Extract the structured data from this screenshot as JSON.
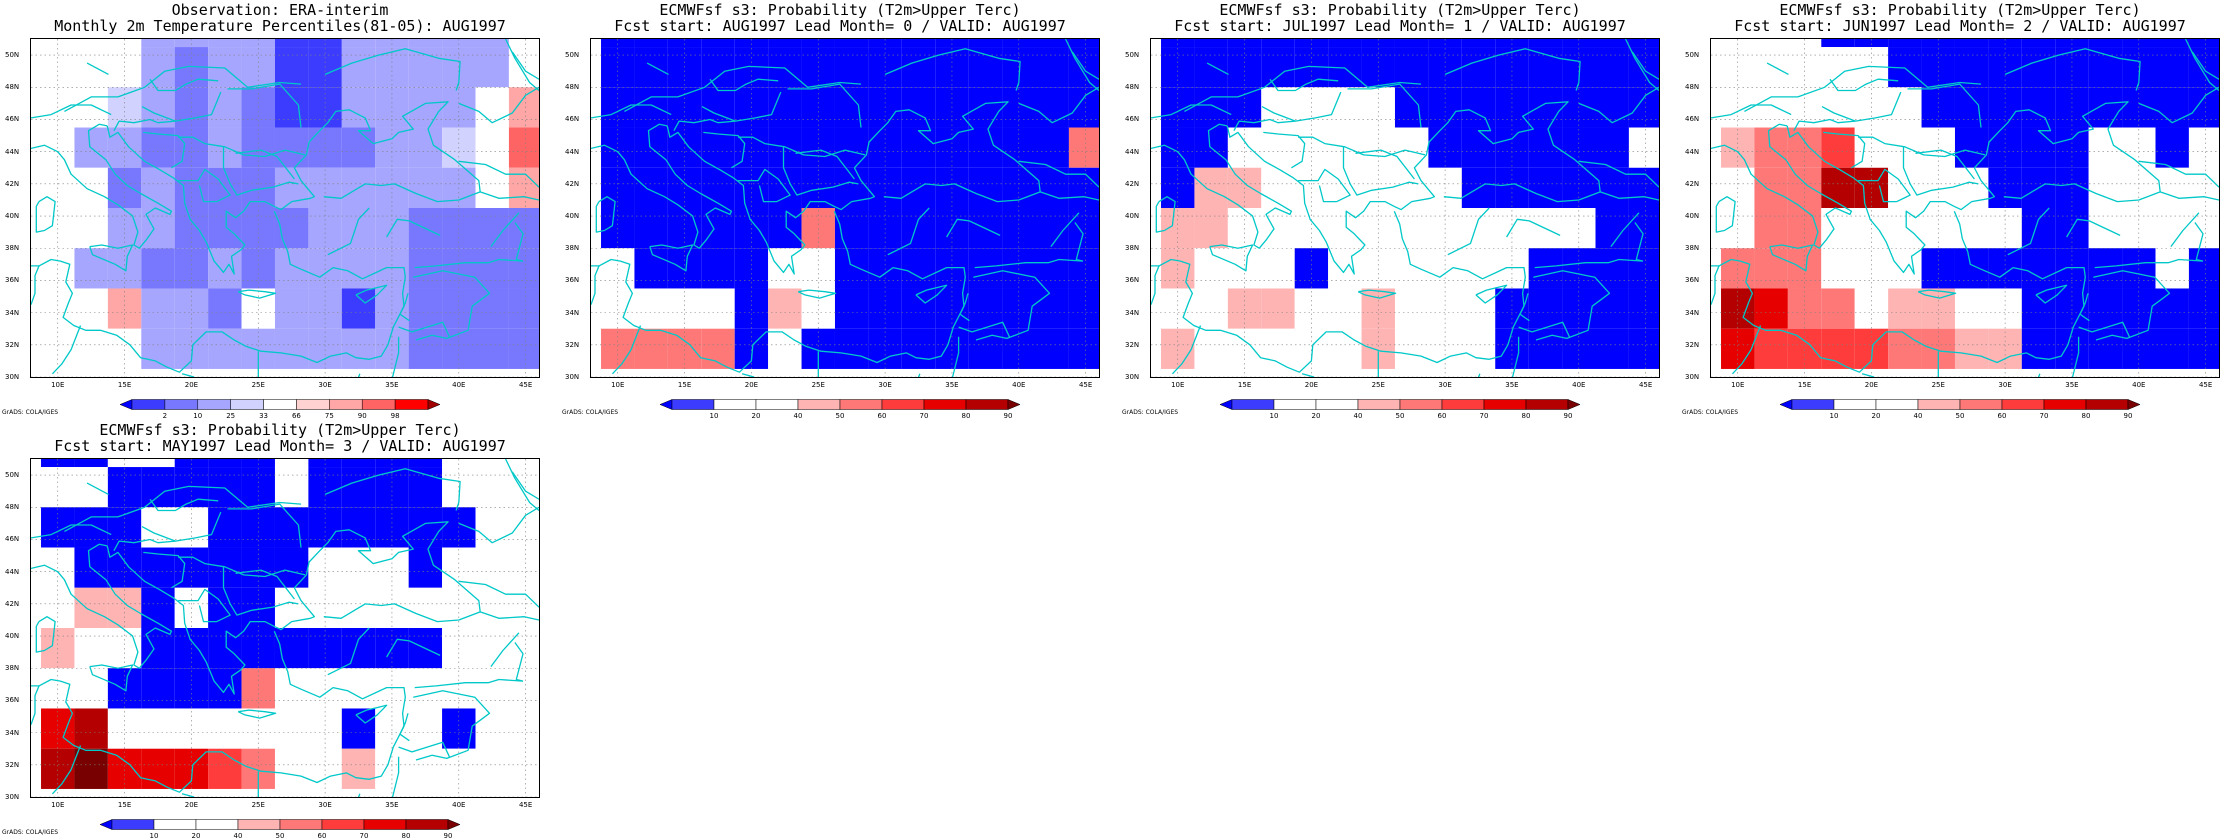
{
  "palette_obs": [
    "#0000ff",
    "#3c3cff",
    "#7878ff",
    "#a6a6ff",
    "#d2d2ff",
    "#ffffff",
    "#ffd2d2",
    "#ffa6a6",
    "#ff6464",
    "#ff0000",
    "#a00000"
  ],
  "palette_prob": [
    "#0000ff",
    "#3c3cff",
    "#ffffff",
    "#ffffff",
    "#ffb4b4",
    "#ff7878",
    "#ff3c3c",
    "#e60000",
    "#b40000",
    "#780000"
  ],
  "coast_color": "#00c8c8",
  "lat_labels": [
    "50N",
    "48N",
    "46N",
    "44N",
    "42N",
    "40N",
    "38N",
    "36N",
    "34N",
    "32N",
    "30N"
  ],
  "lon_labels": [
    "10E",
    "15E",
    "20E",
    "25E",
    "30E",
    "35E",
    "40E",
    "45E"
  ],
  "credit": "GrADS: COLA/IGES",
  "panels": [
    {
      "title1": "Observation: ERA-interim",
      "title2": "Monthly 2m Temperature Percentiles(81-05): AUG1997",
      "palette": "obs",
      "colorbar_labels": [
        "2",
        "10",
        "25",
        "33",
        "66",
        "75",
        "90",
        "98"
      ],
      "grid": [
        [
          8,
          8,
          7,
          7,
          5,
          5,
          5,
          5,
          5,
          5,
          3,
          4,
          5,
          5,
          5
        ],
        [
          8,
          8,
          7,
          6,
          5,
          5,
          4,
          5,
          5,
          5,
          4,
          4,
          5,
          5,
          5
        ],
        [
          7,
          6,
          5,
          5,
          3,
          3,
          3,
          3,
          3,
          3,
          3,
          3,
          3,
          4,
          5
        ],
        [
          5,
          5,
          5,
          3,
          3,
          3,
          3,
          1,
          1,
          3,
          3,
          3,
          3,
          3,
          5
        ],
        [
          5,
          5,
          5,
          3,
          2,
          3,
          3,
          1,
          1,
          3,
          3,
          3,
          3,
          3,
          5
        ],
        [
          5,
          5,
          4,
          3,
          2,
          3,
          2,
          1,
          1,
          3,
          3,
          3,
          3,
          5,
          7
        ],
        [
          5,
          3,
          3,
          2,
          2,
          3,
          2,
          2,
          2,
          2,
          3,
          3,
          4,
          5,
          8
        ],
        [
          5,
          5,
          2,
          3,
          2,
          2,
          2,
          3,
          3,
          3,
          3,
          3,
          3,
          5,
          7
        ],
        [
          5,
          5,
          3,
          3,
          2,
          2,
          2,
          2,
          3,
          3,
          3,
          2,
          2,
          2,
          2
        ],
        [
          5,
          3,
          3,
          2,
          2,
          3,
          2,
          3,
          3,
          3,
          3,
          2,
          2,
          2,
          2
        ],
        [
          5,
          5,
          7,
          3,
          3,
          2,
          5,
          3,
          3,
          1,
          3,
          2,
          2,
          2,
          2
        ],
        [
          5,
          5,
          5,
          3,
          3,
          3,
          3,
          3,
          3,
          3,
          3,
          2,
          2,
          2,
          2
        ]
      ]
    },
    {
      "title1": "ECMWFsf s3: Probability (T2m>Upper Terc)",
      "title2": "Fcst start: AUG1997  Lead Month= 0 / VALID: AUG1997",
      "palette": "prob",
      "colorbar_labels": [
        "10",
        "20",
        "40",
        "50",
        "60",
        "70",
        "80",
        "90"
      ],
      "grid": [
        [
          1,
          0,
          0,
          0,
          0,
          0,
          0,
          0,
          0,
          0,
          0,
          0,
          0,
          0,
          0
        ],
        [
          0,
          0,
          0,
          0,
          0,
          0,
          2,
          0,
          0,
          0,
          0,
          0,
          0,
          0,
          0
        ],
        [
          0,
          0,
          0,
          0,
          0,
          0,
          0,
          0,
          0,
          0,
          0,
          0,
          0,
          0,
          0
        ],
        [
          0,
          0,
          0,
          0,
          0,
          0,
          0,
          0,
          0,
          0,
          0,
          0,
          0,
          0,
          0
        ],
        [
          0,
          0,
          0,
          0,
          0,
          0,
          0,
          0,
          0,
          0,
          0,
          0,
          0,
          0,
          0
        ],
        [
          0,
          0,
          0,
          0,
          0,
          0,
          0,
          0,
          0,
          0,
          0,
          0,
          0,
          0,
          0
        ],
        [
          0,
          0,
          0,
          0,
          0,
          0,
          0,
          0,
          0,
          0,
          0,
          0,
          0,
          0,
          5
        ],
        [
          0,
          0,
          0,
          0,
          0,
          0,
          0,
          0,
          0,
          0,
          0,
          0,
          0,
          0,
          0
        ],
        [
          0,
          0,
          0,
          0,
          0,
          0,
          5,
          0,
          0,
          0,
          0,
          0,
          0,
          0,
          0
        ],
        [
          2,
          0,
          0,
          0,
          0,
          2,
          2,
          0,
          0,
          0,
          0,
          0,
          0,
          0,
          0
        ],
        [
          2,
          2,
          2,
          2,
          0,
          4,
          2,
          0,
          0,
          0,
          0,
          0,
          0,
          0,
          0
        ],
        [
          5,
          5,
          5,
          5,
          0,
          2,
          0,
          0,
          0,
          0,
          0,
          0,
          0,
          0,
          0
        ]
      ]
    },
    {
      "title1": "ECMWFsf s3: Probability (T2m>Upper Terc)",
      "title2": "Fcst start: JUL1997  Lead Month= 1 / VALID: AUG1997",
      "palette": "prob",
      "colorbar_labels": [
        "10",
        "20",
        "40",
        "50",
        "60",
        "70",
        "80",
        "90"
      ],
      "grid": [
        [
          0,
          0,
          0,
          0,
          0,
          0,
          0,
          0,
          0,
          0,
          0,
          0,
          0,
          0,
          0
        ],
        [
          0,
          0,
          0,
          0,
          0,
          0,
          0,
          0,
          0,
          0,
          0,
          0,
          0,
          0,
          0
        ],
        [
          0,
          0,
          0,
          0,
          0,
          0,
          0,
          0,
          0,
          0,
          0,
          0,
          0,
          0,
          0
        ],
        [
          0,
          0,
          0,
          0,
          0,
          0,
          0,
          0,
          0,
          0,
          0,
          0,
          0,
          0,
          0
        ],
        [
          0,
          0,
          0,
          0,
          0,
          0,
          0,
          0,
          0,
          0,
          0,
          0,
          0,
          0,
          0
        ],
        [
          0,
          0,
          0,
          2,
          2,
          2,
          2,
          0,
          0,
          0,
          0,
          0,
          0,
          0,
          0
        ],
        [
          0,
          0,
          2,
          2,
          2,
          2,
          2,
          2,
          0,
          0,
          0,
          0,
          0,
          0,
          2
        ],
        [
          0,
          4,
          4,
          2,
          2,
          2,
          2,
          2,
          2,
          0,
          0,
          0,
          0,
          0,
          0
        ],
        [
          4,
          4,
          2,
          2,
          2,
          2,
          2,
          2,
          2,
          2,
          2,
          2,
          2,
          0,
          0
        ],
        [
          4,
          2,
          2,
          2,
          0,
          2,
          2,
          2,
          2,
          2,
          2,
          0,
          0,
          0,
          0
        ],
        [
          2,
          2,
          4,
          4,
          2,
          2,
          4,
          2,
          2,
          2,
          0,
          0,
          0,
          0,
          0
        ],
        [
          4,
          2,
          2,
          2,
          2,
          2,
          4,
          2,
          2,
          2,
          0,
          0,
          0,
          0,
          0
        ]
      ]
    },
    {
      "title1": "ECMWFsf s3: Probability (T2m>Upper Terc)",
      "title2": "Fcst start: JUN1997  Lead Month= 2 / VALID: AUG1997",
      "palette": "prob",
      "colorbar_labels": [
        "10",
        "20",
        "40",
        "50",
        "60",
        "70",
        "80",
        "90"
      ],
      "grid": [
        [
          4,
          4,
          2,
          2,
          2,
          2,
          1,
          0,
          0,
          2,
          0,
          0,
          0,
          0,
          0
        ],
        [
          4,
          2,
          2,
          2,
          2,
          2,
          0,
          0,
          0,
          0,
          0,
          0,
          0,
          0,
          0
        ],
        [
          4,
          4,
          2,
          0,
          0,
          0,
          0,
          0,
          0,
          0,
          0,
          0,
          0,
          0,
          0
        ],
        [
          2,
          2,
          2,
          0,
          0,
          0,
          0,
          0,
          0,
          0,
          0,
          0,
          0,
          0,
          0
        ],
        [
          2,
          2,
          2,
          2,
          2,
          0,
          0,
          0,
          0,
          0,
          0,
          0,
          0,
          0,
          0
        ],
        [
          2,
          2,
          2,
          2,
          2,
          2,
          0,
          0,
          0,
          0,
          0,
          0,
          0,
          0,
          0
        ],
        [
          4,
          5,
          5,
          6,
          2,
          2,
          2,
          0,
          0,
          0,
          0,
          2,
          2,
          0,
          2
        ],
        [
          2,
          5,
          5,
          8,
          8,
          2,
          2,
          2,
          0,
          0,
          0,
          2,
          2,
          2,
          2
        ],
        [
          2,
          5,
          5,
          2,
          2,
          2,
          2,
          2,
          2,
          0,
          0,
          2,
          2,
          2,
          2
        ],
        [
          5,
          5,
          5,
          2,
          2,
          2,
          0,
          0,
          0,
          0,
          0,
          0,
          0,
          2,
          0
        ],
        [
          8,
          7,
          5,
          5,
          2,
          4,
          4,
          2,
          2,
          0,
          0,
          0,
          0,
          0,
          0
        ],
        [
          7,
          6,
          6,
          6,
          6,
          5,
          5,
          4,
          4,
          0,
          0,
          0,
          0,
          0,
          0
        ]
      ]
    },
    {
      "title1": "ECMWFsf s3: Probability (T2m>Upper Terc)",
      "title2": "Fcst start: MAY1997  Lead Month= 3 / VALID: AUG1997",
      "palette": "prob",
      "colorbar_labels": [
        "10",
        "20",
        "40",
        "50",
        "60",
        "70",
        "80",
        "90"
      ],
      "grid": [
        [
          0,
          0,
          2,
          0,
          0,
          2,
          0,
          0,
          0,
          0,
          0,
          0,
          0,
          0,
          0
        ],
        [
          0,
          0,
          0,
          2,
          0,
          0,
          0,
          0,
          0,
          2,
          0,
          0,
          0,
          0,
          0
        ],
        [
          2,
          2,
          0,
          0,
          0,
          0,
          2,
          0,
          0,
          0,
          0,
          0,
          0,
          2,
          0
        ],
        [
          0,
          0,
          2,
          2,
          0,
          0,
          0,
          2,
          0,
          0,
          0,
          0,
          2,
          2,
          2
        ],
        [
          2,
          2,
          0,
          0,
          0,
          0,
          0,
          2,
          0,
          0,
          0,
          0,
          2,
          2,
          2
        ],
        [
          0,
          0,
          0,
          2,
          2,
          0,
          0,
          0,
          0,
          0,
          0,
          0,
          0,
          2,
          2
        ],
        [
          2,
          0,
          0,
          0,
          0,
          0,
          0,
          0,
          2,
          2,
          2,
          0,
          2,
          2,
          2
        ],
        [
          2,
          4,
          4,
          0,
          2,
          0,
          0,
          2,
          2,
          2,
          2,
          2,
          2,
          2,
          2
        ],
        [
          4,
          2,
          2,
          0,
          0,
          0,
          0,
          0,
          0,
          0,
          0,
          0,
          2,
          2,
          2
        ],
        [
          2,
          2,
          0,
          0,
          0,
          0,
          5,
          2,
          2,
          2,
          2,
          2,
          2,
          2,
          2
        ],
        [
          7,
          8,
          2,
          2,
          2,
          2,
          2,
          2,
          2,
          0,
          2,
          2,
          0,
          2,
          2
        ],
        [
          8,
          9,
          7,
          7,
          7,
          6,
          5,
          2,
          2,
          4,
          2,
          2,
          2,
          2,
          2
        ]
      ]
    }
  ]
}
